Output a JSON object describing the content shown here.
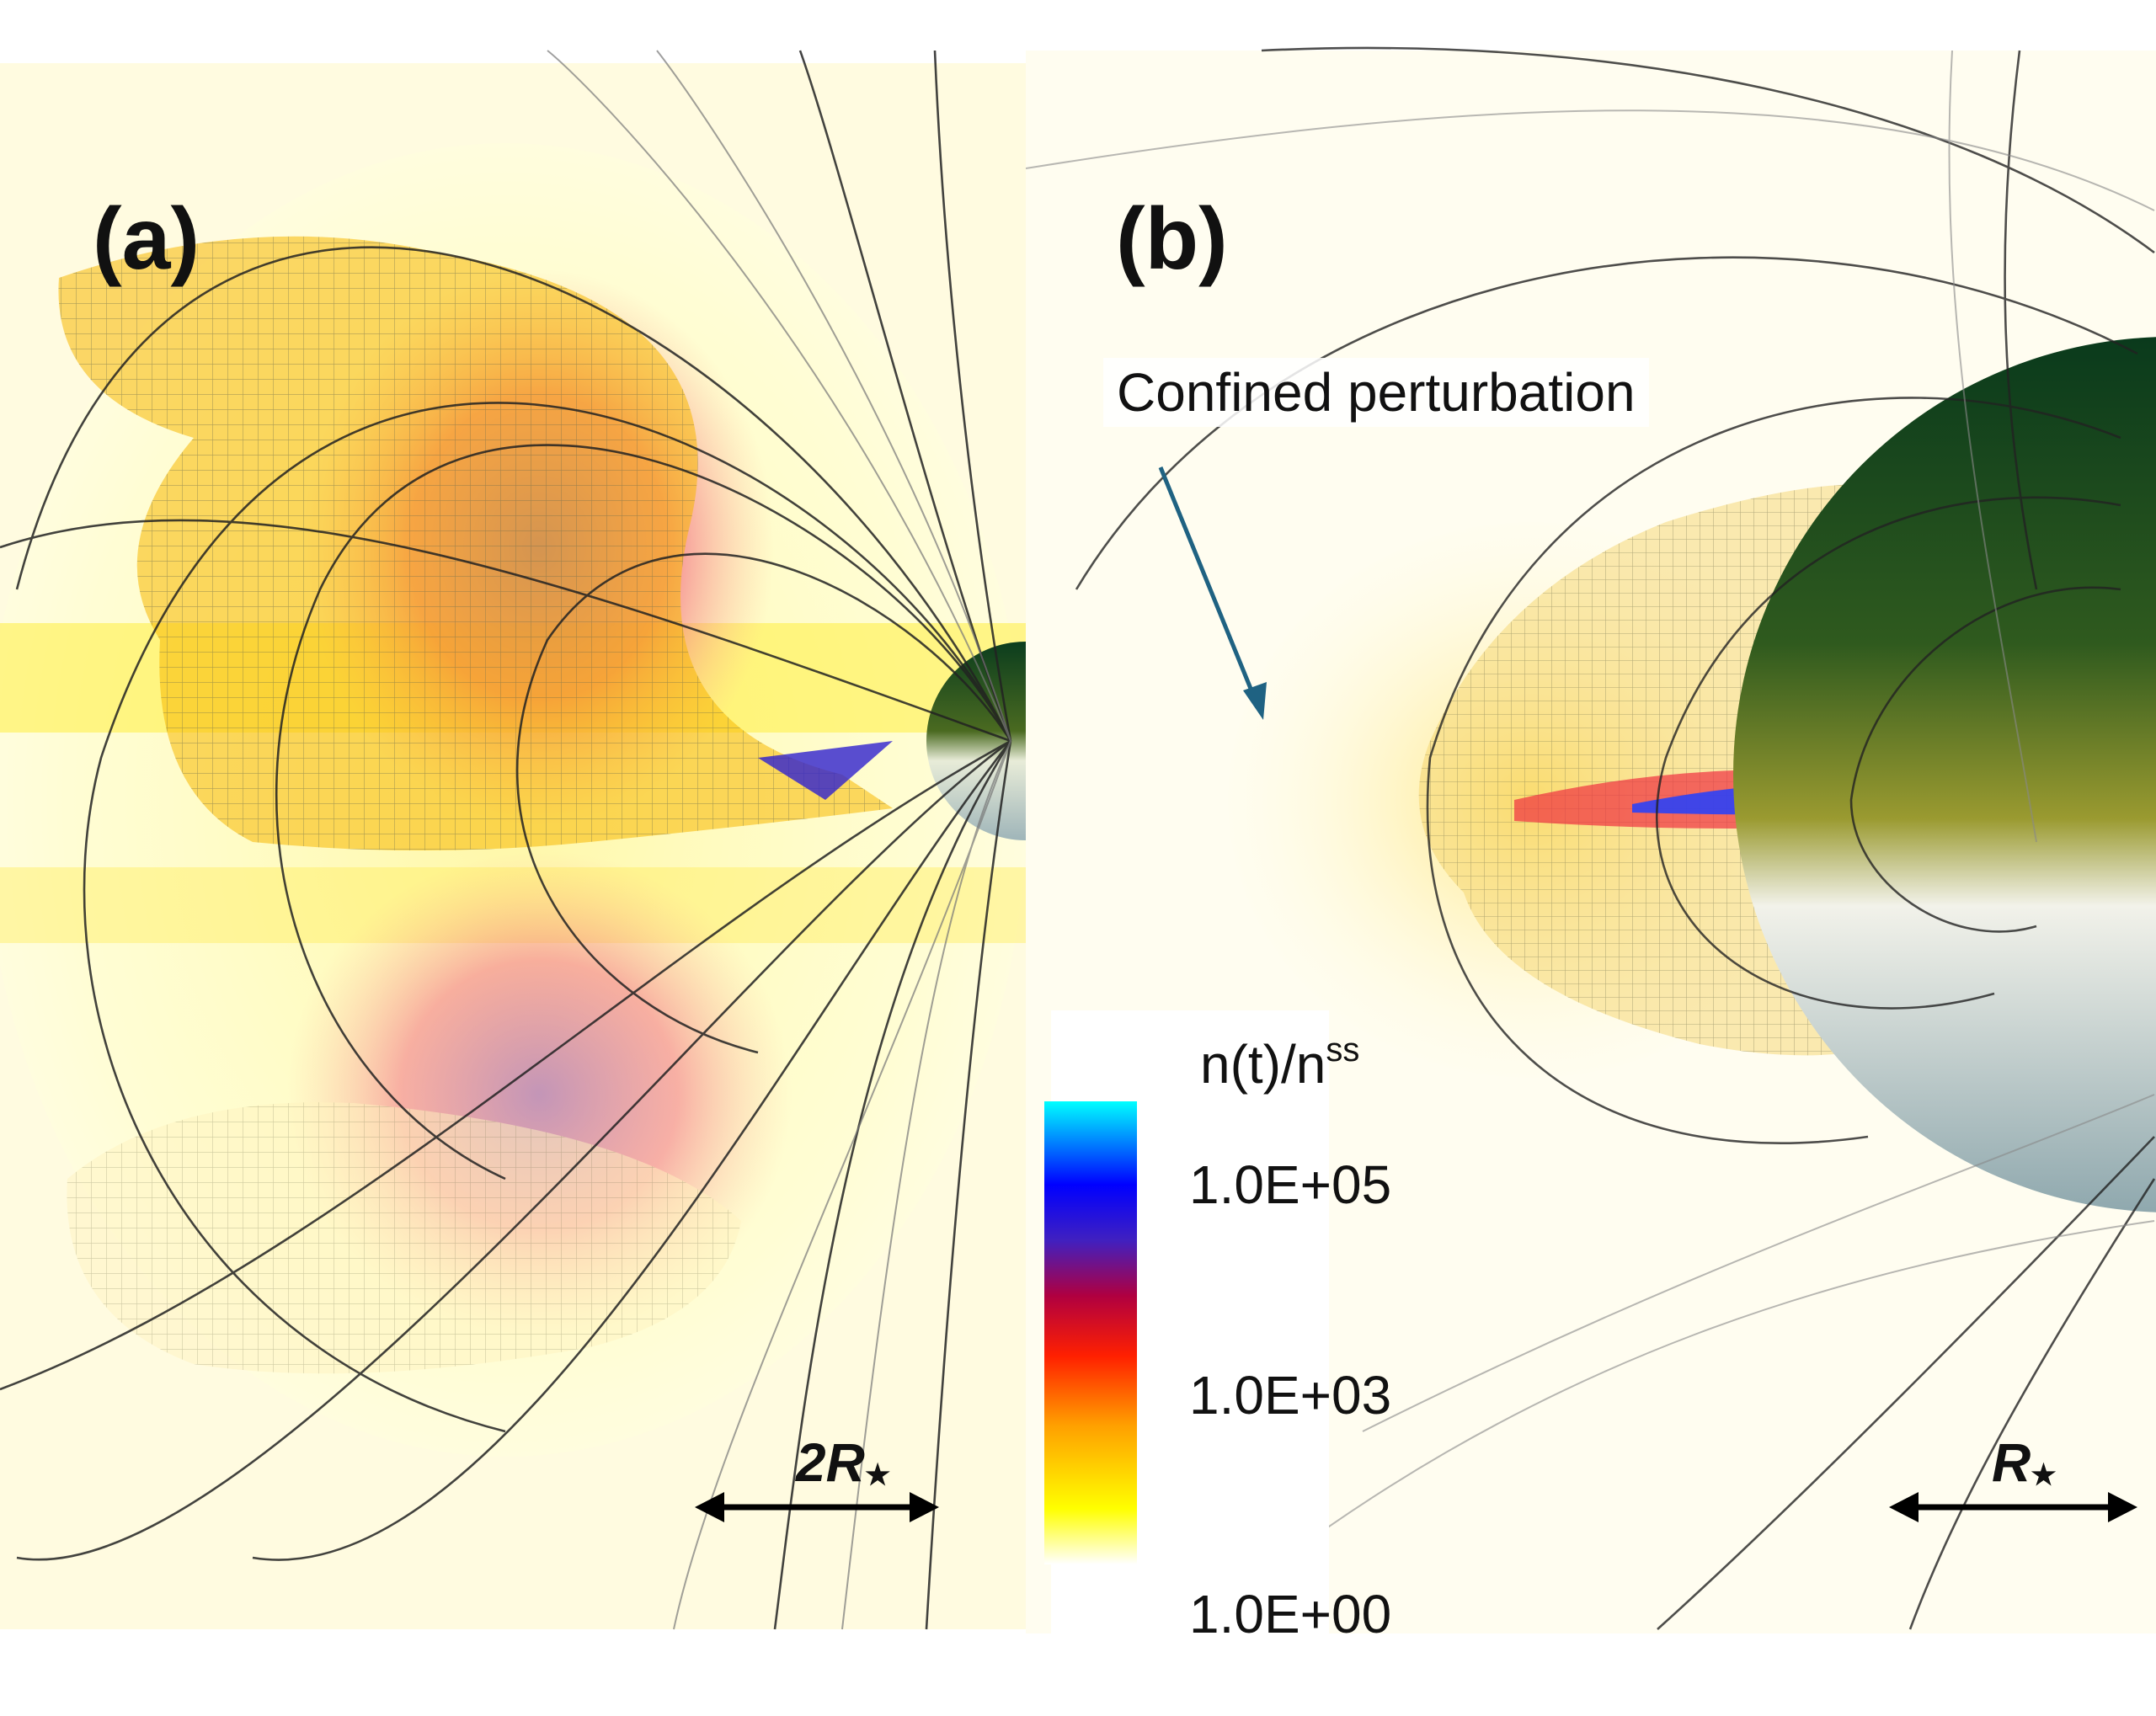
{
  "panels": {
    "a": {
      "label": "(a)",
      "scale": "2R",
      "scale_sub": "★"
    },
    "b": {
      "label": "(b)",
      "scale": "R",
      "scale_sub": "★",
      "annotation": "Confined perturbation"
    }
  },
  "colorbar": {
    "title": "n(t)/n",
    "title_sup": "ss",
    "ticks": [
      "1.0E+05",
      "1.0E+03",
      "1.0E+00"
    ],
    "colors": [
      "#ffffff",
      "#ffff00",
      "#ffa000",
      "#ff2000",
      "#b00040",
      "#4020c0",
      "#0000ff",
      "#00ffff"
    ]
  },
  "colors": {
    "background_glow": "#ffffcc",
    "field_lines": "#222222",
    "star_top": "#0b3d1e",
    "star_bottom": "#9fb5b9"
  }
}
